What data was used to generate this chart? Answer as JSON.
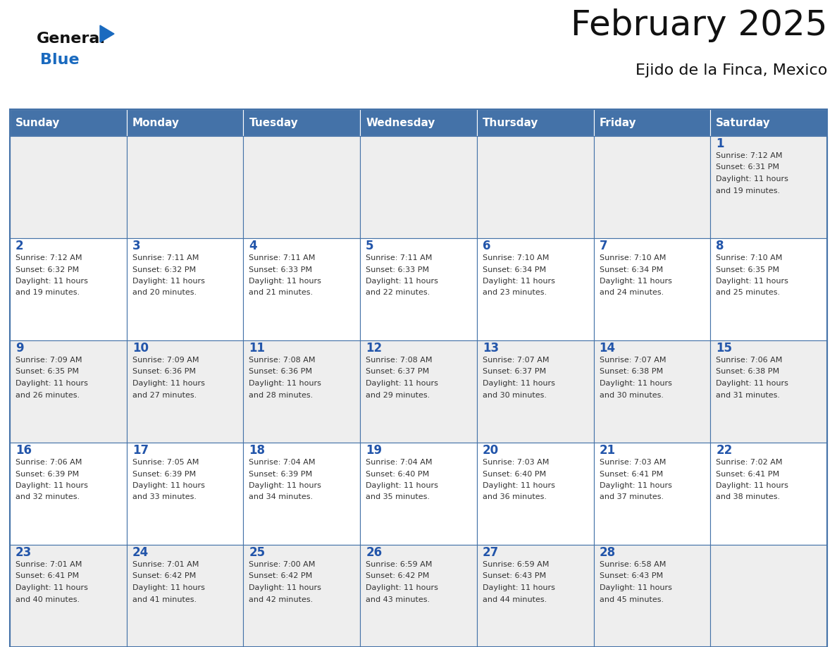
{
  "title": "February 2025",
  "subtitle": "Ejido de la Finca, Mexico",
  "days_of_week": [
    "Sunday",
    "Monday",
    "Tuesday",
    "Wednesday",
    "Thursday",
    "Friday",
    "Saturday"
  ],
  "header_bg": "#4472a8",
  "header_text": "#ffffff",
  "row_bg": [
    "#eeeeee",
    "#ffffff",
    "#eeeeee",
    "#ffffff",
    "#eeeeee"
  ],
  "cell_border_color": "#4472a8",
  "day_number_color": "#2255aa",
  "info_text_color": "#333333",
  "title_color": "#111111",
  "subtitle_color": "#111111",
  "logo_general_color": "#111111",
  "logo_blue_color": "#1a6abf",
  "calendar_data": [
    {
      "day": 1,
      "col": 6,
      "row": 0,
      "sunrise": "7:12 AM",
      "sunset": "6:31 PM",
      "daylight": "11 hours and 19 minutes."
    },
    {
      "day": 2,
      "col": 0,
      "row": 1,
      "sunrise": "7:12 AM",
      "sunset": "6:32 PM",
      "daylight": "11 hours and 19 minutes."
    },
    {
      "day": 3,
      "col": 1,
      "row": 1,
      "sunrise": "7:11 AM",
      "sunset": "6:32 PM",
      "daylight": "11 hours and 20 minutes."
    },
    {
      "day": 4,
      "col": 2,
      "row": 1,
      "sunrise": "7:11 AM",
      "sunset": "6:33 PM",
      "daylight": "11 hours and 21 minutes."
    },
    {
      "day": 5,
      "col": 3,
      "row": 1,
      "sunrise": "7:11 AM",
      "sunset": "6:33 PM",
      "daylight": "11 hours and 22 minutes."
    },
    {
      "day": 6,
      "col": 4,
      "row": 1,
      "sunrise": "7:10 AM",
      "sunset": "6:34 PM",
      "daylight": "11 hours and 23 minutes."
    },
    {
      "day": 7,
      "col": 5,
      "row": 1,
      "sunrise": "7:10 AM",
      "sunset": "6:34 PM",
      "daylight": "11 hours and 24 minutes."
    },
    {
      "day": 8,
      "col": 6,
      "row": 1,
      "sunrise": "7:10 AM",
      "sunset": "6:35 PM",
      "daylight": "11 hours and 25 minutes."
    },
    {
      "day": 9,
      "col": 0,
      "row": 2,
      "sunrise": "7:09 AM",
      "sunset": "6:35 PM",
      "daylight": "11 hours and 26 minutes."
    },
    {
      "day": 10,
      "col": 1,
      "row": 2,
      "sunrise": "7:09 AM",
      "sunset": "6:36 PM",
      "daylight": "11 hours and 27 minutes."
    },
    {
      "day": 11,
      "col": 2,
      "row": 2,
      "sunrise": "7:08 AM",
      "sunset": "6:36 PM",
      "daylight": "11 hours and 28 minutes."
    },
    {
      "day": 12,
      "col": 3,
      "row": 2,
      "sunrise": "7:08 AM",
      "sunset": "6:37 PM",
      "daylight": "11 hours and 29 minutes."
    },
    {
      "day": 13,
      "col": 4,
      "row": 2,
      "sunrise": "7:07 AM",
      "sunset": "6:37 PM",
      "daylight": "11 hours and 30 minutes."
    },
    {
      "day": 14,
      "col": 5,
      "row": 2,
      "sunrise": "7:07 AM",
      "sunset": "6:38 PM",
      "daylight": "11 hours and 30 minutes."
    },
    {
      "day": 15,
      "col": 6,
      "row": 2,
      "sunrise": "7:06 AM",
      "sunset": "6:38 PM",
      "daylight": "11 hours and 31 minutes."
    },
    {
      "day": 16,
      "col": 0,
      "row": 3,
      "sunrise": "7:06 AM",
      "sunset": "6:39 PM",
      "daylight": "11 hours and 32 minutes."
    },
    {
      "day": 17,
      "col": 1,
      "row": 3,
      "sunrise": "7:05 AM",
      "sunset": "6:39 PM",
      "daylight": "11 hours and 33 minutes."
    },
    {
      "day": 18,
      "col": 2,
      "row": 3,
      "sunrise": "7:04 AM",
      "sunset": "6:39 PM",
      "daylight": "11 hours and 34 minutes."
    },
    {
      "day": 19,
      "col": 3,
      "row": 3,
      "sunrise": "7:04 AM",
      "sunset": "6:40 PM",
      "daylight": "11 hours and 35 minutes."
    },
    {
      "day": 20,
      "col": 4,
      "row": 3,
      "sunrise": "7:03 AM",
      "sunset": "6:40 PM",
      "daylight": "11 hours and 36 minutes."
    },
    {
      "day": 21,
      "col": 5,
      "row": 3,
      "sunrise": "7:03 AM",
      "sunset": "6:41 PM",
      "daylight": "11 hours and 37 minutes."
    },
    {
      "day": 22,
      "col": 6,
      "row": 3,
      "sunrise": "7:02 AM",
      "sunset": "6:41 PM",
      "daylight": "11 hours and 38 minutes."
    },
    {
      "day": 23,
      "col": 0,
      "row": 4,
      "sunrise": "7:01 AM",
      "sunset": "6:41 PM",
      "daylight": "11 hours and 40 minutes."
    },
    {
      "day": 24,
      "col": 1,
      "row": 4,
      "sunrise": "7:01 AM",
      "sunset": "6:42 PM",
      "daylight": "11 hours and 41 minutes."
    },
    {
      "day": 25,
      "col": 2,
      "row": 4,
      "sunrise": "7:00 AM",
      "sunset": "6:42 PM",
      "daylight": "11 hours and 42 minutes."
    },
    {
      "day": 26,
      "col": 3,
      "row": 4,
      "sunrise": "6:59 AM",
      "sunset": "6:42 PM",
      "daylight": "11 hours and 43 minutes."
    },
    {
      "day": 27,
      "col": 4,
      "row": 4,
      "sunrise": "6:59 AM",
      "sunset": "6:43 PM",
      "daylight": "11 hours and 44 minutes."
    },
    {
      "day": 28,
      "col": 5,
      "row": 4,
      "sunrise": "6:58 AM",
      "sunset": "6:43 PM",
      "daylight": "11 hours and 45 minutes."
    }
  ]
}
